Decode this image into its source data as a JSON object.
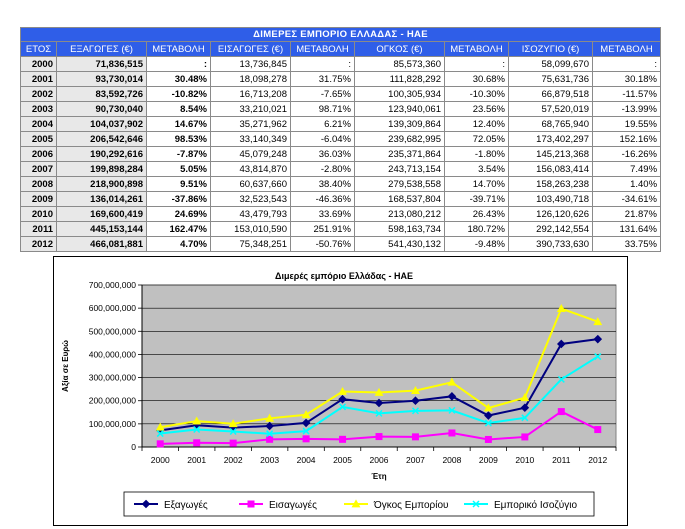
{
  "table": {
    "title": "ΔΙΜΕΡΕΣ ΕΜΠΟΡΙΟ ΕΛΛΑΔΑΣ - ΗΑΕ",
    "headers": [
      "ΕΤΟΣ",
      "ΕΞΑΓΩΓΕΣ (€)",
      "ΜΕΤΑΒΟΛΗ",
      "ΕΙΣΑΓΩΓΕΣ (€)",
      "ΜΕΤΑΒΟΛΗ",
      "ΟΓΚΟΣ (€)",
      "ΜΕΤΑΒΟΛΗ",
      "ΙΣΟΖΥΓΙΟ (€)",
      "ΜΕΤΑΒΟΛΗ"
    ],
    "rows": [
      [
        "2000",
        "71,836,515",
        ":",
        "13,736,845",
        ":",
        "85,573,360",
        ":",
        "58,099,670",
        ":"
      ],
      [
        "2001",
        "93,730,014",
        "30.48%",
        "18,098,278",
        "31.75%",
        "111,828,292",
        "30.68%",
        "75,631,736",
        "30.18%"
      ],
      [
        "2002",
        "83,592,726",
        "-10.82%",
        "16,713,208",
        "-7.65%",
        "100,305,934",
        "-10.30%",
        "66,879,518",
        "-11.57%"
      ],
      [
        "2003",
        "90,730,040",
        "8.54%",
        "33,210,021",
        "98.71%",
        "123,940,061",
        "23.56%",
        "57,520,019",
        "-13.99%"
      ],
      [
        "2004",
        "104,037,902",
        "14.67%",
        "35,271,962",
        "6.21%",
        "139,309,864",
        "12.40%",
        "68,765,940",
        "19.55%"
      ],
      [
        "2005",
        "206,542,646",
        "98.53%",
        "33,140,349",
        "-6.04%",
        "239,682,995",
        "72.05%",
        "173,402,297",
        "152.16%"
      ],
      [
        "2006",
        "190,292,616",
        "-7.87%",
        "45,079,248",
        "36.03%",
        "235,371,864",
        "-1.80%",
        "145,213,368",
        "-16.26%"
      ],
      [
        "2007",
        "199,898,284",
        "5.05%",
        "43,814,870",
        "-2.80%",
        "243,713,154",
        "3.54%",
        "156,083,414",
        "7.49%"
      ],
      [
        "2008",
        "218,900,898",
        "9.51%",
        "60,637,660",
        "38.40%",
        "279,538,558",
        "14.70%",
        "158,263,238",
        "1.40%"
      ],
      [
        "2009",
        "136,014,261",
        "-37.86%",
        "32,523,543",
        "-46.36%",
        "168,537,804",
        "-39.71%",
        "103,490,718",
        "-34.61%"
      ],
      [
        "2010",
        "169,600,419",
        "24.69%",
        "43,479,793",
        "33.69%",
        "213,080,212",
        "26.43%",
        "126,120,626",
        "21.87%"
      ],
      [
        "2011",
        "445,153,144",
        "162.47%",
        "153,010,590",
        "251.91%",
        "598,163,734",
        "180.72%",
        "292,142,554",
        "131.64%"
      ],
      [
        "2012",
        "466,081,881",
        "4.70%",
        "75,348,251",
        "-50.76%",
        "541,430,132",
        "-9.48%",
        "390,733,630",
        "33.75%"
      ]
    ]
  },
  "chart_data": {
    "type": "line",
    "title": "Διμερές εμπόριο Ελλάδας - ΗΑΕ",
    "xlabel": "Έτη",
    "ylabel": "Αξία σε Ευρώ",
    "ylim": [
      0,
      700000000
    ],
    "yticks": [
      0,
      100000000,
      200000000,
      300000000,
      400000000,
      500000000,
      600000000,
      700000000
    ],
    "ytick_labels": [
      "0",
      "100,000,000",
      "200,000,000",
      "300,000,000",
      "400,000,000",
      "500,000,000",
      "600,000,000",
      "700,000,000"
    ],
    "categories": [
      "2000",
      "2001",
      "2002",
      "2003",
      "2004",
      "2005",
      "2006",
      "2007",
      "2008",
      "2009",
      "2010",
      "2011",
      "2012"
    ],
    "grid": true,
    "legend_position": "bottom",
    "plot_background": "#c0c0c0",
    "series": [
      {
        "name": "Εξαγωγές",
        "color": "#000080",
        "marker": "diamond",
        "values": [
          71836515,
          93730014,
          83592726,
          90730040,
          104037902,
          206542646,
          190292616,
          199898284,
          218900898,
          136014261,
          169600419,
          445153144,
          466081881
        ]
      },
      {
        "name": "Εισαγωγές",
        "color": "#ff00ff",
        "marker": "square",
        "values": [
          13736845,
          18098278,
          16713208,
          33210021,
          35271962,
          33140349,
          45079248,
          43814870,
          60637660,
          32523543,
          43479793,
          153010590,
          75348251
        ]
      },
      {
        "name": "Όγκος Εμπορίου",
        "color": "#ffff00",
        "marker": "triangle",
        "values": [
          85573360,
          111828292,
          100305934,
          123940061,
          139309864,
          239682995,
          235371864,
          243713154,
          279538558,
          168537804,
          213080212,
          598163734,
          541430132
        ]
      },
      {
        "name": "Εμπορικό Ισοζύγιο",
        "color": "#00ffff",
        "marker": "x",
        "values": [
          58099670,
          75631736,
          66879518,
          57520019,
          68765940,
          173402297,
          145213368,
          156083414,
          158263238,
          103490718,
          126120626,
          292142554,
          390733630
        ]
      }
    ]
  }
}
